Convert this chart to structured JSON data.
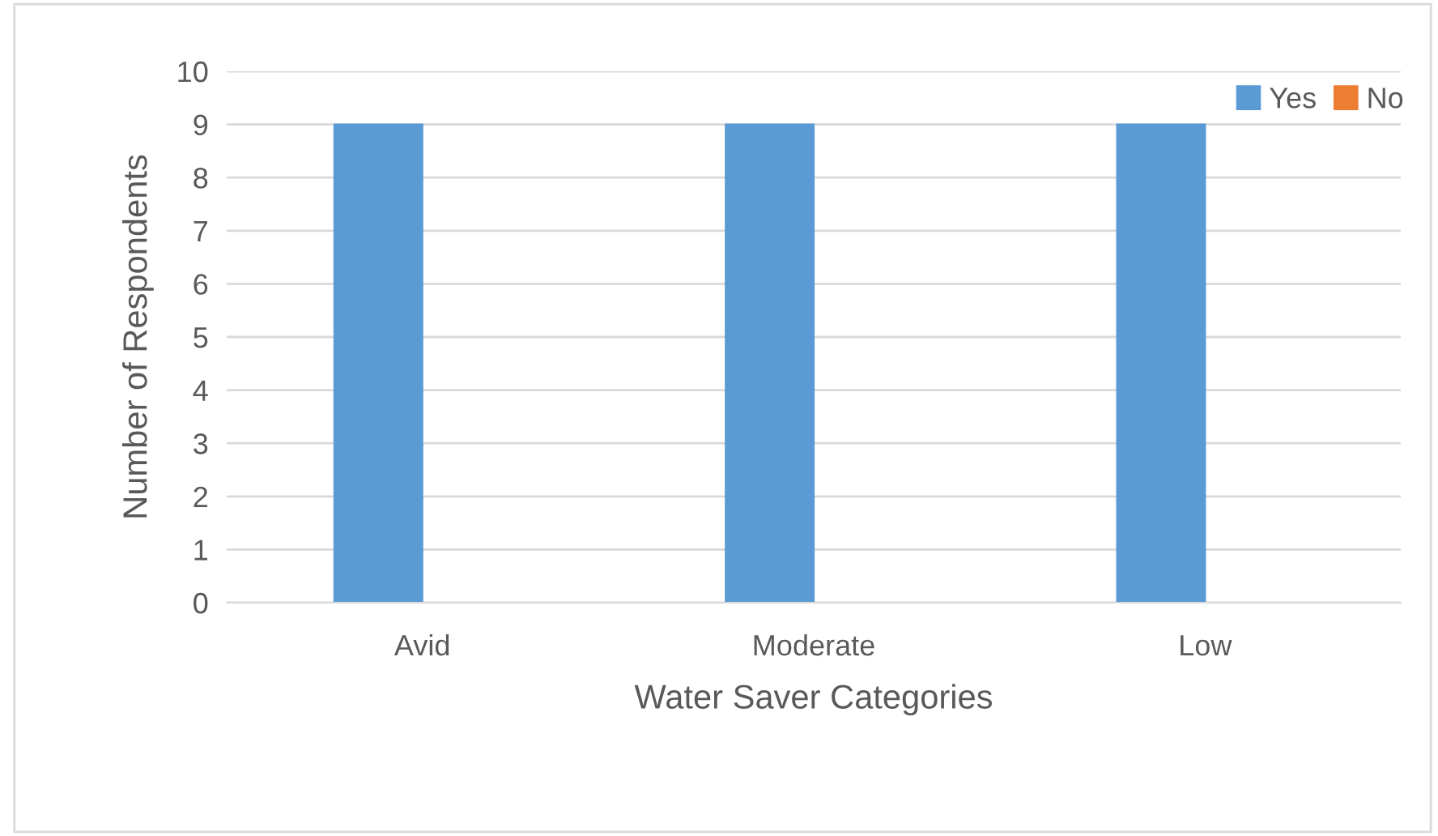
{
  "chart_data": {
    "type": "bar",
    "xlabel": "Water Saver Categories",
    "ylabel": "Number of Respondents",
    "categories": [
      "Avid",
      "Moderate",
      "Low"
    ],
    "series": [
      {
        "name": "Yes",
        "color": "#5b9bd5",
        "values": [
          9,
          9,
          9
        ]
      },
      {
        "name": "No",
        "color": "#ed7d31",
        "values": [
          0,
          0,
          0
        ]
      }
    ],
    "ylim": [
      0,
      10
    ],
    "yticks": [
      0,
      1,
      2,
      3,
      4,
      5,
      6,
      7,
      8,
      9,
      10
    ],
    "grid": "y",
    "legend": "top right"
  }
}
